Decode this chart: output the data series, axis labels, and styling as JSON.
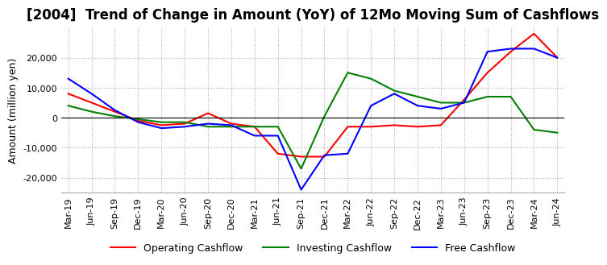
{
  "title": "[2004]  Trend of Change in Amount (YoY) of 12Mo Moving Sum of Cashflows",
  "ylabel": "Amount (million yen)",
  "ylim": [
    -25000,
    30000
  ],
  "yticks": [
    -20000,
    -10000,
    0,
    10000,
    20000
  ],
  "x_labels": [
    "Mar-19",
    "Jun-19",
    "Sep-19",
    "Dec-19",
    "Mar-20",
    "Jun-20",
    "Sep-20",
    "Dec-20",
    "Mar-21",
    "Jun-21",
    "Sep-21",
    "Dec-21",
    "Mar-22",
    "Jun-22",
    "Sep-22",
    "Dec-22",
    "Mar-23",
    "Jun-23",
    "Sep-23",
    "Dec-23",
    "Mar-24",
    "Jun-24"
  ],
  "operating": [
    8000,
    5000,
    2000,
    -1000,
    -2500,
    -2000,
    1500,
    -2000,
    -3000,
    -12000,
    -13000,
    -13000,
    -3000,
    -3000,
    -2500,
    -3000,
    -2500,
    6000,
    15000,
    22000,
    28000,
    20000
  ],
  "investing": [
    4000,
    2000,
    500,
    -500,
    -1500,
    -1500,
    -3000,
    -3000,
    -3000,
    -3000,
    -17000,
    500,
    15000,
    13000,
    9000,
    7000,
    5000,
    5000,
    7000,
    7000,
    -4000,
    -5000
  ],
  "free": [
    13000,
    8000,
    2500,
    -1500,
    -3500,
    -3000,
    -2000,
    -2500,
    -6000,
    -6000,
    -24000,
    -12500,
    -12000,
    4000,
    8000,
    4000,
    3000,
    5000,
    22000,
    23000,
    23000,
    20000
  ],
  "operating_color": "#ff0000",
  "investing_color": "#008000",
  "free_color": "#0000ff",
  "background_color": "#ffffff",
  "grid_color": "#aaaaaa",
  "title_fontsize": 12,
  "label_fontsize": 9,
  "tick_fontsize": 8
}
